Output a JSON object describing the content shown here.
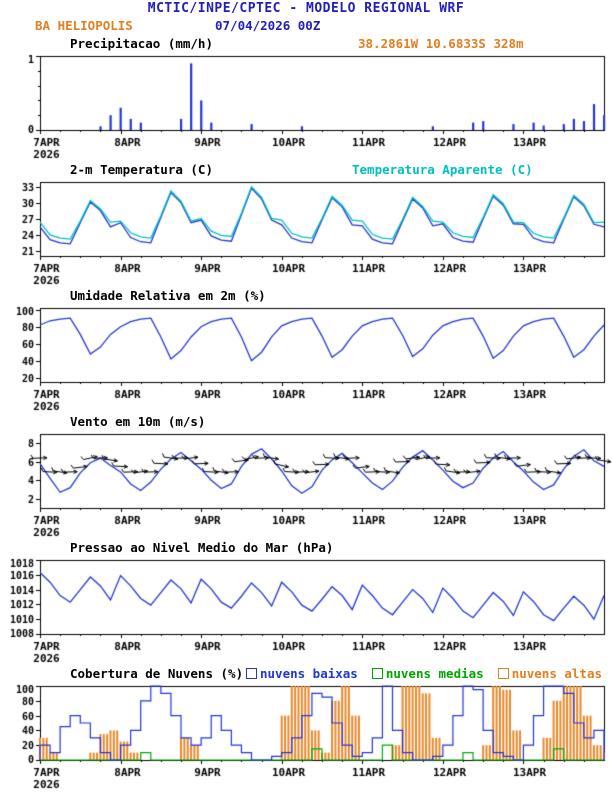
{
  "header": {
    "title": "MCTIC/INPE/CPTEC - MODELO REGIONAL WRF",
    "station": "BA HELIOPOLIS",
    "run": "07/04/2026 00Z",
    "location": "38.2861W 10.6833S 328m"
  },
  "colors": {
    "header_blue": "#2020b8",
    "orange": "#e08020",
    "cyan": "#00c0c0",
    "line_blue": "#2236d4",
    "green": "#00a800",
    "black": "#000000"
  },
  "time_axis": {
    "hours_total": 168,
    "step_hours": 3,
    "minor_tick_hours": 6,
    "ticks": [
      {
        "h": 0,
        "label": "7APR",
        "sub": "2026"
      },
      {
        "h": 24,
        "label": "8APR"
      },
      {
        "h": 48,
        "label": "9APR"
      },
      {
        "h": 72,
        "label": "10APR"
      },
      {
        "h": 96,
        "label": "11APR"
      },
      {
        "h": 120,
        "label": "12APR"
      },
      {
        "h": 144,
        "label": "13APR"
      }
    ]
  },
  "chart_data": [
    {
      "id": "precip",
      "type": "bar",
      "title": "Precipitacao (mm/h)",
      "ylim": [
        0,
        1
      ],
      "yticks": [
        0,
        1
      ],
      "yticks_minor": [
        0.2,
        0.4,
        0.6,
        0.8
      ],
      "color": "#2236d4",
      "values": [
        0,
        0,
        0,
        0,
        0,
        0,
        0.05,
        0.2,
        0.3,
        0.15,
        0.1,
        0,
        0,
        0,
        0.15,
        0.9,
        0.4,
        0.1,
        0,
        0,
        0,
        0.08,
        0,
        0,
        0,
        0,
        0.05,
        0,
        0,
        0,
        0,
        0,
        0,
        0,
        0,
        0,
        0,
        0,
        0,
        0.05,
        0,
        0,
        0,
        0.1,
        0.12,
        0,
        0,
        0.08,
        0,
        0.1,
        0.06,
        0,
        0.08,
        0.15,
        0.12,
        0.35,
        0.2
      ]
    },
    {
      "id": "temp2m",
      "type": "line",
      "title": "2-m Temperatura (C)",
      "title_right": "Temperatura Aparente (C)",
      "ylim": [
        20,
        34
      ],
      "yticks": [
        21,
        24,
        27,
        30,
        33
      ],
      "series": [
        {
          "name": "2-m Temperatura (C)",
          "color": "#2236d4",
          "values": [
            25.5,
            23.1,
            22.5,
            22.3,
            26.3,
            30.2,
            28.6,
            25.5,
            26.3,
            23.5,
            22.7,
            22.5,
            27.3,
            32.0,
            30.1,
            26.3,
            26.8,
            23.8,
            23.0,
            22.8,
            27.8,
            32.8,
            30.8,
            26.8,
            25.9,
            23.4,
            22.7,
            22.5,
            26.8,
            31.0,
            29.3,
            25.9,
            25.7,
            23.2,
            22.5,
            22.3,
            26.6,
            30.8,
            29.1,
            25.7,
            26.1,
            23.5,
            22.8,
            22.6,
            27.0,
            31.3,
            29.6,
            26.1,
            26.0,
            23.4,
            22.7,
            22.5,
            26.9,
            31.2,
            29.5,
            26.0,
            25.5
          ]
        },
        {
          "name": "Temperatura Aparente (C)",
          "color": "#00c0c0",
          "values": [
            26.4,
            24.0,
            23.4,
            23.2,
            26.6,
            30.5,
            28.9,
            26.4,
            26.6,
            24.4,
            23.6,
            23.4,
            27.6,
            32.3,
            30.4,
            26.6,
            27.1,
            24.7,
            23.9,
            23.7,
            28.1,
            33.1,
            31.1,
            27.1,
            26.8,
            24.3,
            23.6,
            23.4,
            27.1,
            31.3,
            29.6,
            26.8,
            26.6,
            24.1,
            23.4,
            23.2,
            26.9,
            31.1,
            29.4,
            26.6,
            26.4,
            24.4,
            23.7,
            23.5,
            27.3,
            31.6,
            29.9,
            26.4,
            26.3,
            24.3,
            23.6,
            23.4,
            27.2,
            31.5,
            29.8,
            26.3,
            26.4
          ]
        }
      ]
    },
    {
      "id": "umidade",
      "type": "line",
      "title": "Umidade Relativa em 2m (%)",
      "ylim": [
        15,
        102
      ],
      "yticks": [
        20,
        40,
        60,
        80,
        100
      ],
      "series": [
        {
          "name": "Umidade Relativa em 2m (%)",
          "color": "#2236d4",
          "values": [
            82,
            87,
            89,
            90,
            71,
            48,
            56,
            71,
            80,
            86,
            89,
            90,
            68,
            42,
            52,
            68,
            80,
            86,
            89,
            90,
            68,
            40,
            50,
            68,
            81,
            86,
            89,
            90,
            69,
            44,
            53,
            69,
            81,
            86,
            89,
            90,
            70,
            45,
            54,
            70,
            81,
            86,
            89,
            90,
            69,
            43,
            52,
            69,
            81,
            86,
            89,
            90,
            69,
            44,
            53,
            69,
            82
          ]
        }
      ]
    },
    {
      "id": "vento",
      "type": "wind",
      "title": "Vento em 10m (m/s)",
      "ylim": [
        1,
        9
      ],
      "yticks": [
        2,
        4,
        6,
        8
      ],
      "series": [
        {
          "name": "Vento em 10m (m/s)",
          "color": "#2236d4",
          "values": [
            5.8,
            4.2,
            2.7,
            3.2,
            4.8,
            5.9,
            6.4,
            5.6,
            4.9,
            3.6,
            2.9,
            3.8,
            5.2,
            6.3,
            7.0,
            6.1,
            5.2,
            4.0,
            3.1,
            3.6,
            5.5,
            6.8,
            7.4,
            6.3,
            5.0,
            3.4,
            2.6,
            3.3,
            5.1,
            6.2,
            6.9,
            5.9,
            4.8,
            3.7,
            3.0,
            3.9,
            5.4,
            6.5,
            7.2,
            6.2,
            5.1,
            3.9,
            3.2,
            3.7,
            5.3,
            6.4,
            7.1,
            6.0,
            5.0,
            3.8,
            3.0,
            3.5,
            5.2,
            6.6,
            7.3,
            6.1,
            5.5
          ]
        }
      ],
      "barbs": {
        "color": "#000000",
        "dirs": [
          100,
          105,
          110,
          100,
          95,
          90,
          100,
          110,
          105,
          100,
          95,
          100,
          105,
          110,
          100,
          95,
          100,
          105,
          110,
          100,
          95,
          90,
          100,
          110,
          115,
          105,
          100,
          95,
          100,
          105,
          110,
          100,
          95,
          100,
          105,
          110,
          100,
          95,
          90,
          100,
          105,
          110,
          100,
          95,
          100,
          105,
          110,
          100,
          95,
          100,
          105,
          110,
          100,
          95,
          100,
          105,
          110
        ]
      }
    },
    {
      "id": "pressao",
      "type": "line",
      "title": "Pressao ao Nivel Medio do Mar (hPa)",
      "ylim": [
        1008,
        1018
      ],
      "yticks": [
        1008,
        1010,
        1012,
        1014,
        1016,
        1018
      ],
      "series": [
        {
          "name": "Pressao ao Nivel Medio do Mar (hPa)",
          "color": "#2236d4",
          "values": [
            1016.3,
            1015.0,
            1013.2,
            1012.3,
            1014.0,
            1015.7,
            1014.5,
            1012.6,
            1015.9,
            1014.5,
            1012.8,
            1011.9,
            1013.6,
            1015.3,
            1014.1,
            1012.2,
            1015.4,
            1014.1,
            1012.3,
            1011.5,
            1013.1,
            1014.9,
            1013.6,
            1011.8,
            1015.0,
            1013.7,
            1011.9,
            1011.1,
            1012.7,
            1014.4,
            1013.2,
            1011.3,
            1014.6,
            1013.2,
            1011.5,
            1010.6,
            1012.3,
            1014.0,
            1012.8,
            1010.9,
            1014.2,
            1012.8,
            1011.1,
            1010.2,
            1011.9,
            1013.6,
            1012.4,
            1010.5,
            1013.7,
            1012.4,
            1010.6,
            1009.8,
            1011.5,
            1013.1,
            1011.9,
            1010.0,
            1013.2
          ]
        }
      ]
    },
    {
      "id": "nuvens",
      "type": "cloud",
      "title": "Cobertura de Nuvens (%)",
      "ylim": [
        0,
        100
      ],
      "yticks": [
        0,
        20,
        40,
        60,
        80,
        100
      ],
      "legend": [
        {
          "label": "nuvens baixas",
          "color": "#2236d4"
        },
        {
          "label": "nuvens medias",
          "color": "#00a800"
        },
        {
          "label": "nuvens altas",
          "color": "#e08020"
        }
      ],
      "series": [
        {
          "name": "nuvens altas",
          "style": "bars",
          "color": "#e8882a",
          "values": [
            30,
            10,
            0,
            0,
            0,
            10,
            35,
            40,
            25,
            10,
            0,
            0,
            0,
            0,
            30,
            20,
            0,
            0,
            0,
            0,
            0,
            0,
            0,
            0,
            60,
            100,
            100,
            40,
            10,
            80,
            100,
            60,
            0,
            0,
            0,
            20,
            100,
            100,
            90,
            30,
            0,
            0,
            0,
            0,
            20,
            100,
            95,
            40,
            0,
            0,
            30,
            80,
            100,
            100,
            60,
            20,
            10
          ]
        },
        {
          "name": "nuvens medias",
          "style": "steps",
          "color": "#00a800",
          "values": [
            0,
            0,
            0,
            0,
            0,
            0,
            0,
            0,
            0,
            0,
            10,
            0,
            0,
            0,
            0,
            0,
            0,
            0,
            0,
            0,
            0,
            0,
            0,
            0,
            0,
            0,
            0,
            15,
            0,
            0,
            0,
            0,
            0,
            0,
            20,
            0,
            0,
            0,
            0,
            0,
            0,
            0,
            10,
            0,
            0,
            0,
            0,
            0,
            0,
            0,
            0,
            15,
            0,
            0,
            0,
            0,
            0
          ]
        },
        {
          "name": "nuvens baixas",
          "style": "steps",
          "color": "#2236d4",
          "values": [
            20,
            10,
            45,
            60,
            50,
            30,
            10,
            0,
            20,
            40,
            80,
            100,
            90,
            60,
            30,
            20,
            30,
            60,
            40,
            20,
            10,
            0,
            0,
            5,
            10,
            30,
            60,
            90,
            85,
            50,
            20,
            5,
            10,
            30,
            100,
            40,
            10,
            0,
            0,
            5,
            20,
            60,
            100,
            95,
            40,
            10,
            5,
            0,
            20,
            60,
            100,
            100,
            90,
            50,
            30,
            40,
            20
          ]
        }
      ]
    }
  ]
}
